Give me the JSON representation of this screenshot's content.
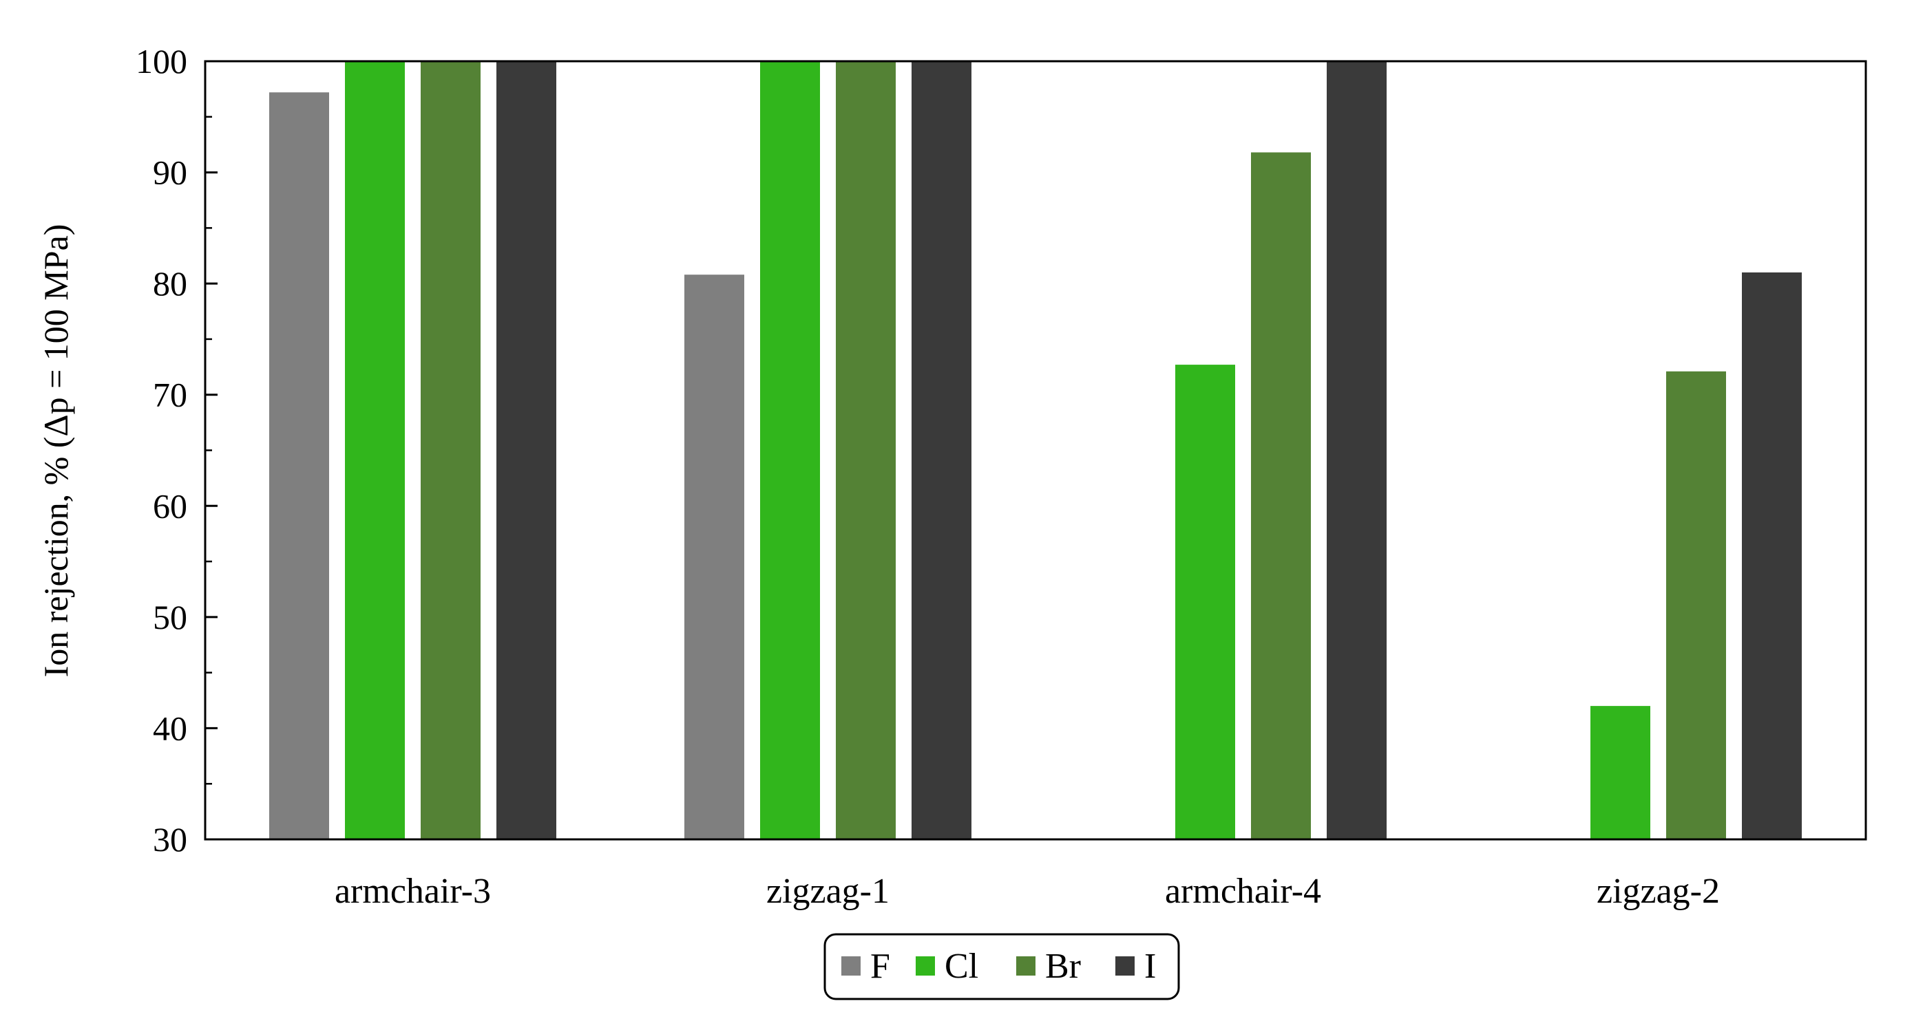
{
  "chart_data": {
    "type": "bar",
    "title": "",
    "xlabel": "",
    "ylabel": "Ion rejection, % (Δp = 100 MPa)",
    "categories": [
      "armchair-3",
      "zigzag-1",
      "armchair-4",
      "zigzag-2"
    ],
    "ylim": [
      30,
      100
    ],
    "yticks": [
      30,
      40,
      50,
      60,
      70,
      80,
      90,
      100
    ],
    "grid": false,
    "legend_position": "bottom-center",
    "series": [
      {
        "name": "F",
        "color": "#7f7f7f",
        "values": [
          97.2,
          80.8,
          null,
          null
        ]
      },
      {
        "name": "Cl",
        "color": "#31b61c",
        "values": [
          100,
          100,
          72.7,
          42.0
        ]
      },
      {
        "name": "Br",
        "color": "#548235",
        "values": [
          100,
          100,
          91.8,
          72.1
        ]
      },
      {
        "name": "I",
        "color": "#3a3a3a",
        "values": [
          100,
          100,
          100,
          81.0
        ]
      }
    ]
  }
}
